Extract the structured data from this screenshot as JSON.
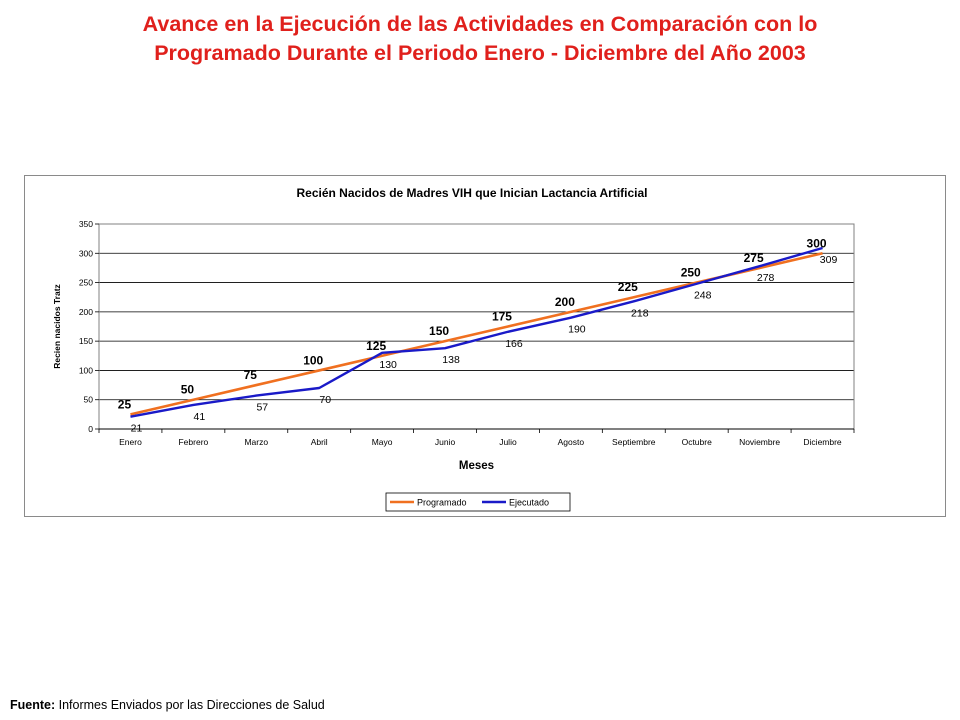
{
  "page": {
    "title_line1": "Avance en la Ejecución de las Actividades en Comparación con lo",
    "title_line2": "Programado Durante el Periodo Enero - Diciembre del Año 2003",
    "source_label": "Fuente:",
    "source_text": " Informes Enviados por las Direcciones de Salud"
  },
  "chart_data": {
    "type": "line",
    "title": "Recién Nacidos de Madres VIH que Inician Lactancia Artificial",
    "xlabel": "Meses",
    "ylabel": "Recien nacidos Tratz",
    "ylim": [
      0,
      350
    ],
    "yticks": [
      0,
      50,
      100,
      150,
      200,
      250,
      300,
      350
    ],
    "grid": true,
    "legend_position": "bottom-center",
    "categories": [
      "Enero",
      "Febrero",
      "Marzo",
      "Abril",
      "Mayo",
      "Junio",
      "Julio",
      "Agosto",
      "Septiembre",
      "Octubre",
      "Noviembre",
      "Diciembre"
    ],
    "series": [
      {
        "name": "Programado",
        "color": "#f07020",
        "values": [
          25,
          50,
          75,
          100,
          125,
          150,
          175,
          200,
          225,
          250,
          275,
          300
        ],
        "labels": [
          "25",
          "50",
          "75",
          "100",
          "125",
          "150",
          "175",
          "200",
          "225",
          "250",
          "275",
          "300"
        ]
      },
      {
        "name": "Ejecutado",
        "color": "#1a1ac8",
        "values": [
          21,
          41,
          57,
          70,
          130,
          138,
          166,
          190,
          218,
          248,
          278,
          309
        ],
        "labels": [
          "21",
          "41",
          "57",
          "70",
          "130",
          "138",
          "166",
          "190",
          "218",
          "248",
          "278",
          "309"
        ]
      }
    ]
  }
}
